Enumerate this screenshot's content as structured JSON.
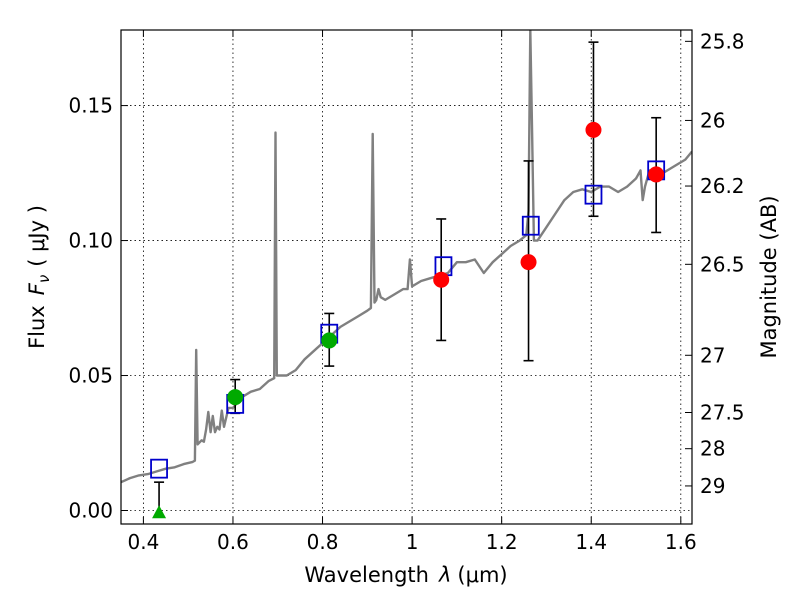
{
  "chart_data": {
    "type": "scatter",
    "xlabel_prefix": "Wavelength",
    "xlabel_symbol": "λ",
    "xlabel_unit": "(μm)",
    "ylabel_prefix": "Flux",
    "ylabel_symbol": "F",
    "ylabel_subscript": "ν",
    "ylabel_unit": "( μJy )",
    "y2label": "Magnitude (AB)",
    "xlim": [
      0.35,
      1.625
    ],
    "ylim": [
      -0.005,
      0.178
    ],
    "grid": true,
    "grid_style": "dotted",
    "x_ticks": [
      {
        "value": 0.4,
        "label": "0.4"
      },
      {
        "value": 0.6,
        "label": "0.6"
      },
      {
        "value": 0.8,
        "label": "0.8"
      },
      {
        "value": 1.0,
        "label": "1"
      },
      {
        "value": 1.2,
        "label": "1.2"
      },
      {
        "value": 1.4,
        "label": "1.4"
      },
      {
        "value": 1.6,
        "label": "1.6"
      }
    ],
    "y_ticks": [
      {
        "value": 0.0,
        "label": "0.00"
      },
      {
        "value": 0.05,
        "label": "0.05"
      },
      {
        "value": 0.1,
        "label": "0.10"
      },
      {
        "value": 0.15,
        "label": "0.15"
      }
    ],
    "y2_ticks": [
      {
        "flux": 0.1738,
        "label": "25.8"
      },
      {
        "flux": 0.1445,
        "label": "26"
      },
      {
        "flux": 0.1202,
        "label": "26.2"
      },
      {
        "flux": 0.0912,
        "label": "26.5"
      },
      {
        "flux": 0.0575,
        "label": "27"
      },
      {
        "flux": 0.0363,
        "label": "27.5"
      },
      {
        "flux": 0.0229,
        "label": "28"
      },
      {
        "flux": 0.0091,
        "label": "29"
      }
    ],
    "model_spectrum": {
      "color": "#808080",
      "points": [
        [
          0.35,
          0.0105
        ],
        [
          0.37,
          0.012
        ],
        [
          0.39,
          0.013
        ],
        [
          0.41,
          0.0135
        ],
        [
          0.43,
          0.0145
        ],
        [
          0.45,
          0.0155
        ],
        [
          0.47,
          0.016
        ],
        [
          0.49,
          0.0172
        ],
        [
          0.51,
          0.018
        ],
        [
          0.515,
          0.0185
        ],
        [
          0.518,
          0.0595
        ],
        [
          0.521,
          0.0245
        ],
        [
          0.53,
          0.026
        ],
        [
          0.535,
          0.0255
        ],
        [
          0.54,
          0.03
        ],
        [
          0.545,
          0.0365
        ],
        [
          0.55,
          0.029
        ],
        [
          0.555,
          0.035
        ],
        [
          0.56,
          0.029
        ],
        [
          0.565,
          0.031
        ],
        [
          0.57,
          0.03
        ],
        [
          0.575,
          0.037
        ],
        [
          0.58,
          0.031
        ],
        [
          0.59,
          0.038
        ],
        [
          0.6,
          0.038
        ],
        [
          0.61,
          0.04
        ],
        [
          0.62,
          0.042
        ],
        [
          0.64,
          0.044
        ],
        [
          0.66,
          0.045
        ],
        [
          0.68,
          0.048
        ],
        [
          0.692,
          0.049
        ],
        [
          0.695,
          0.14
        ],
        [
          0.698,
          0.05
        ],
        [
          0.72,
          0.05
        ],
        [
          0.74,
          0.052
        ],
        [
          0.76,
          0.056
        ],
        [
          0.78,
          0.059
        ],
        [
          0.8,
          0.062
        ],
        [
          0.82,
          0.065
        ],
        [
          0.84,
          0.068
        ],
        [
          0.86,
          0.07
        ],
        [
          0.88,
          0.072
        ],
        [
          0.9,
          0.074
        ],
        [
          0.908,
          0.075
        ],
        [
          0.912,
          0.1395
        ],
        [
          0.916,
          0.077
        ],
        [
          0.92,
          0.078
        ],
        [
          0.925,
          0.082
        ],
        [
          0.93,
          0.079
        ],
        [
          0.94,
          0.078
        ],
        [
          0.96,
          0.08
        ],
        [
          0.98,
          0.082
        ],
        [
          0.99,
          0.082
        ],
        [
          0.995,
          0.093
        ],
        [
          1.0,
          0.083
        ],
        [
          1.02,
          0.085
        ],
        [
          1.04,
          0.086
        ],
        [
          1.06,
          0.087
        ],
        [
          1.08,
          0.088
        ],
        [
          1.1,
          0.092
        ],
        [
          1.12,
          0.092
        ],
        [
          1.14,
          0.093
        ],
        [
          1.16,
          0.088
        ],
        [
          1.18,
          0.092
        ],
        [
          1.2,
          0.095
        ],
        [
          1.22,
          0.098
        ],
        [
          1.24,
          0.1
        ],
        [
          1.255,
          0.102
        ],
        [
          1.26,
          0.111
        ],
        [
          1.264,
          0.178
        ],
        [
          1.268,
          0.14
        ],
        [
          1.272,
          0.1
        ],
        [
          1.28,
          0.1
        ],
        [
          1.3,
          0.105
        ],
        [
          1.32,
          0.11
        ],
        [
          1.34,
          0.115
        ],
        [
          1.36,
          0.118
        ],
        [
          1.38,
          0.119
        ],
        [
          1.4,
          0.118
        ],
        [
          1.42,
          0.12
        ],
        [
          1.44,
          0.12
        ],
        [
          1.46,
          0.118
        ],
        [
          1.48,
          0.12
        ],
        [
          1.5,
          0.123
        ],
        [
          1.51,
          0.126
        ],
        [
          1.515,
          0.115
        ],
        [
          1.52,
          0.12
        ],
        [
          1.53,
          0.126
        ],
        [
          1.55,
          0.124
        ],
        [
          1.57,
          0.126
        ],
        [
          1.59,
          0.128
        ],
        [
          1.61,
          0.13
        ],
        [
          1.625,
          0.133
        ]
      ]
    },
    "model_photometry": {
      "color": "#0000cc",
      "points": [
        [
          0.435,
          0.0155
        ],
        [
          0.605,
          0.0395
        ],
        [
          0.815,
          0.0655
        ],
        [
          1.07,
          0.0905
        ],
        [
          1.265,
          0.1055
        ],
        [
          1.405,
          0.117
        ],
        [
          1.545,
          0.126
        ]
      ]
    },
    "detections_green": {
      "color": "#00aa00",
      "points": [
        {
          "x": 0.605,
          "y": 0.042,
          "err_lo": 0.006,
          "err_hi": 0.0065
        },
        {
          "x": 0.815,
          "y": 0.063,
          "err_lo": 0.0095,
          "err_hi": 0.01
        }
      ]
    },
    "detections_red": {
      "color": "#ff0000",
      "points": [
        {
          "x": 1.065,
          "y": 0.0855,
          "err_lo": 0.0225,
          "err_hi": 0.0225
        },
        {
          "x": 1.26,
          "y": 0.092,
          "err_lo": 0.0365,
          "err_hi": 0.0375
        },
        {
          "x": 1.405,
          "y": 0.141,
          "err_lo": 0.032,
          "err_hi": 0.0325
        },
        {
          "x": 1.545,
          "y": 0.1245,
          "err_lo": 0.0215,
          "err_hi": 0.021
        }
      ]
    },
    "upper_limit": {
      "color": "#00aa00",
      "x": 0.435,
      "y": -0.001,
      "err_hi": 0.0115
    }
  }
}
